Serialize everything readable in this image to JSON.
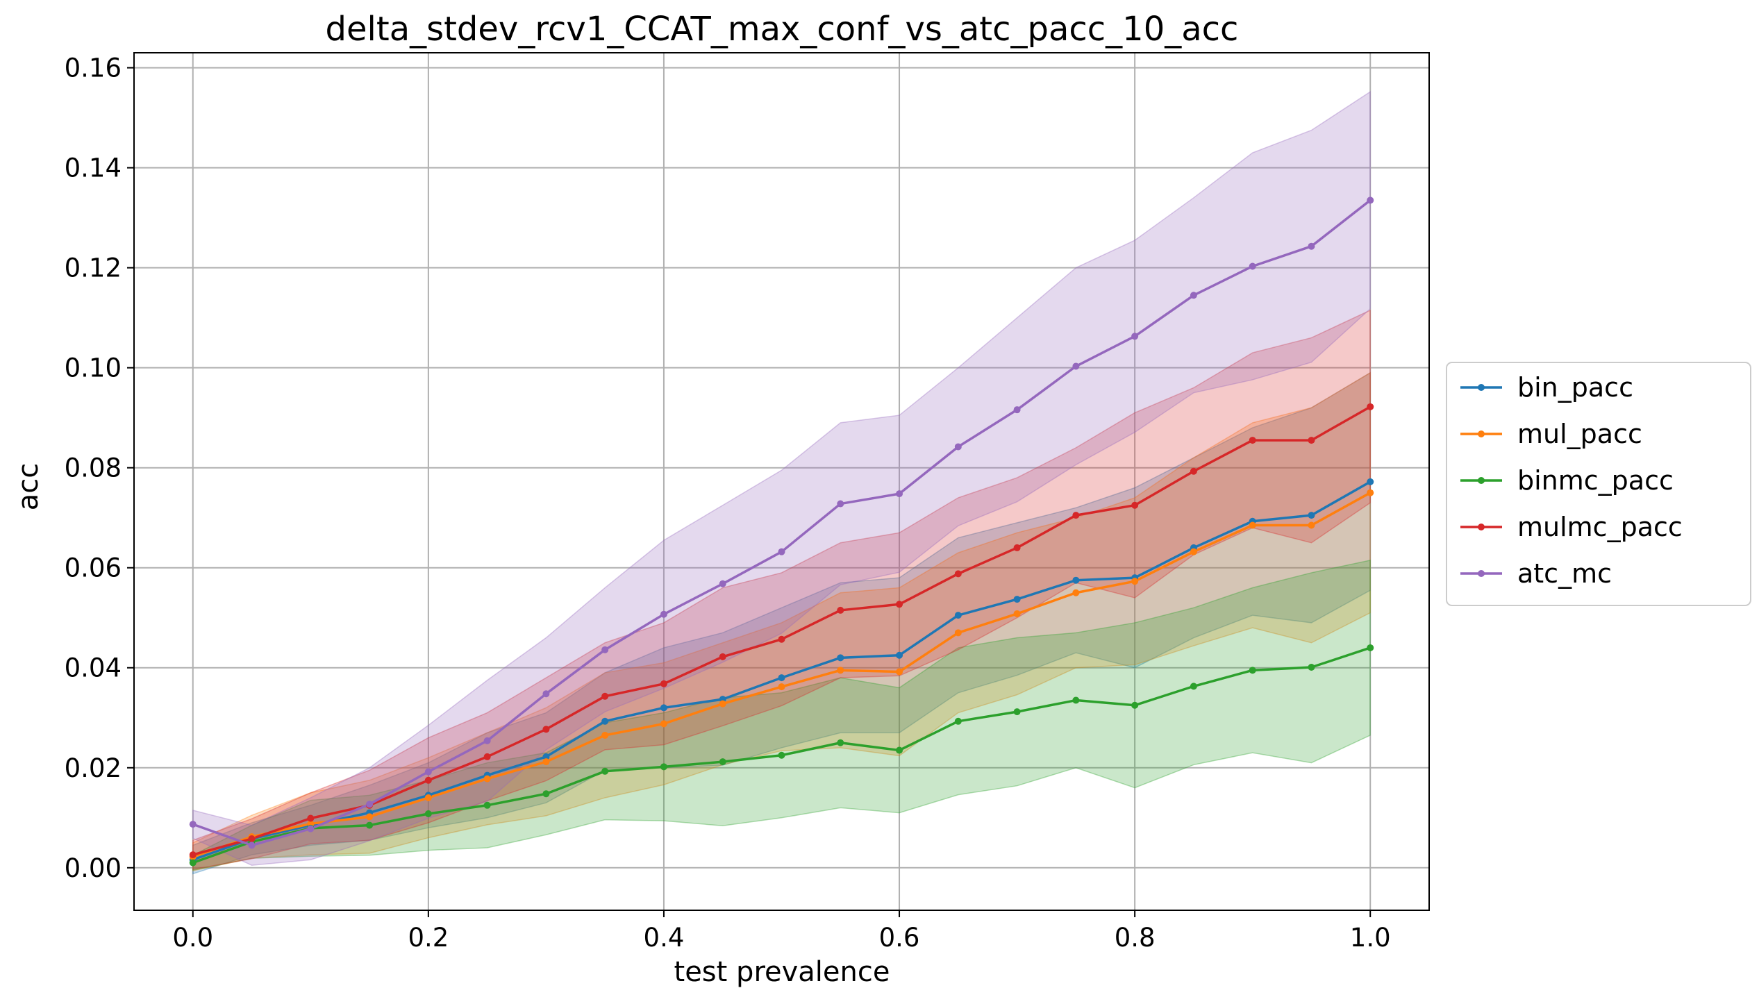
{
  "chart_data": {
    "type": "line",
    "title": "delta_stdev_rcv1_CCAT_max_conf_vs_atc_pacc_10_acc",
    "xlabel": "test prevalence",
    "ylabel": "acc",
    "xlim": [
      -0.05,
      1.05
    ],
    "ylim": [
      -0.0085,
      0.163
    ],
    "xticks": [
      0.0,
      0.2,
      0.4,
      0.6,
      0.8,
      1.0
    ],
    "xtick_labels": [
      "0.0",
      "0.2",
      "0.4",
      "0.6",
      "0.8",
      "1.0"
    ],
    "yticks": [
      0.0,
      0.02,
      0.04,
      0.06,
      0.08,
      0.1,
      0.12,
      0.14,
      0.16
    ],
    "ytick_labels": [
      "0.00",
      "0.02",
      "0.04",
      "0.06",
      "0.08",
      "0.10",
      "0.12",
      "0.14",
      "0.16"
    ],
    "grid": true,
    "legend_position": "outside-right",
    "x": [
      0.0,
      0.05,
      0.1,
      0.15,
      0.2,
      0.25,
      0.3,
      0.35,
      0.4,
      0.45,
      0.5,
      0.55,
      0.6,
      0.65,
      0.7,
      0.75,
      0.8,
      0.85,
      0.9,
      0.95,
      1.0
    ],
    "series": [
      {
        "name": "bin_pacc",
        "color": "#1f77b4",
        "values": [
          0.0016,
          0.0058,
          0.0085,
          0.011,
          0.0145,
          0.0185,
          0.0222,
          0.0293,
          0.032,
          0.0337,
          0.038,
          0.042,
          0.0425,
          0.0505,
          0.0537,
          0.0575,
          0.058,
          0.064,
          0.0693,
          0.0705,
          0.0772
        ],
        "upper": [
          0.0045,
          0.009,
          0.0125,
          0.0165,
          0.021,
          0.027,
          0.031,
          0.039,
          0.044,
          0.047,
          0.052,
          0.057,
          0.058,
          0.066,
          0.069,
          0.072,
          0.076,
          0.082,
          0.088,
          0.092,
          0.099
        ],
        "lower": [
          -0.0012,
          0.0026,
          0.0045,
          0.0055,
          0.008,
          0.01,
          0.013,
          0.0195,
          0.02,
          0.0205,
          0.024,
          0.027,
          0.027,
          0.035,
          0.0385,
          0.043,
          0.04,
          0.046,
          0.0505,
          0.049,
          0.0555
        ]
      },
      {
        "name": "mul_pacc",
        "color": "#ff7f0e",
        "values": [
          0.0022,
          0.0062,
          0.0088,
          0.0102,
          0.014,
          0.0178,
          0.0212,
          0.0265,
          0.0288,
          0.0328,
          0.0362,
          0.0395,
          0.0392,
          0.047,
          0.0508,
          0.055,
          0.0573,
          0.0632,
          0.0685,
          0.0685,
          0.075
        ],
        "upper": [
          0.005,
          0.0105,
          0.015,
          0.0175,
          0.022,
          0.027,
          0.032,
          0.039,
          0.041,
          0.045,
          0.049,
          0.055,
          0.056,
          0.063,
          0.067,
          0.07,
          0.074,
          0.082,
          0.089,
          0.092,
          0.099
        ],
        "lower": [
          -0.0006,
          0.0019,
          0.0026,
          0.0029,
          0.006,
          0.0086,
          0.0104,
          0.014,
          0.0166,
          0.0206,
          0.0234,
          0.024,
          0.0224,
          0.031,
          0.0346,
          0.04,
          0.0406,
          0.0444,
          0.048,
          0.045,
          0.051
        ]
      },
      {
        "name": "binmc_pacc",
        "color": "#2ca02c",
        "values": [
          0.001,
          0.0052,
          0.0079,
          0.0085,
          0.0108,
          0.0125,
          0.0148,
          0.0193,
          0.0202,
          0.0212,
          0.0225,
          0.025,
          0.0235,
          0.0293,
          0.0312,
          0.0335,
          0.0325,
          0.0363,
          0.0395,
          0.0401,
          0.044
        ],
        "upper": [
          0.0025,
          0.0085,
          0.0135,
          0.0145,
          0.0175,
          0.021,
          0.023,
          0.029,
          0.031,
          0.034,
          0.035,
          0.038,
          0.036,
          0.044,
          0.046,
          0.047,
          0.049,
          0.052,
          0.056,
          0.059,
          0.0615
        ],
        "lower": [
          -0.0005,
          0.0019,
          0.0023,
          0.0025,
          0.0035,
          0.004,
          0.0066,
          0.0096,
          0.0094,
          0.0084,
          0.01,
          0.012,
          0.011,
          0.0146,
          0.0164,
          0.02,
          0.016,
          0.0206,
          0.023,
          0.021,
          0.0265
        ]
      },
      {
        "name": "mulmc_pacc",
        "color": "#d62728",
        "values": [
          0.0026,
          0.0058,
          0.0099,
          0.0125,
          0.0175,
          0.0222,
          0.0277,
          0.0343,
          0.0368,
          0.0422,
          0.0457,
          0.0515,
          0.0527,
          0.0588,
          0.064,
          0.0705,
          0.0725,
          0.0793,
          0.0855,
          0.0855,
          0.0922
        ],
        "upper": [
          0.0055,
          0.0098,
          0.015,
          0.0195,
          0.026,
          0.031,
          0.038,
          0.045,
          0.049,
          0.056,
          0.059,
          0.065,
          0.067,
          0.074,
          0.078,
          0.084,
          0.091,
          0.096,
          0.103,
          0.106,
          0.1115
        ],
        "lower": [
          -0.0003,
          0.0018,
          0.0048,
          0.0055,
          0.009,
          0.0134,
          0.0174,
          0.0236,
          0.0246,
          0.0284,
          0.0324,
          0.038,
          0.0384,
          0.0436,
          0.05,
          0.057,
          0.054,
          0.0626,
          0.068,
          0.065,
          0.073
        ]
      },
      {
        "name": "atc_mc",
        "color": "#9467bd",
        "values": [
          0.0087,
          0.0045,
          0.0078,
          0.0127,
          0.0192,
          0.0254,
          0.0348,
          0.0436,
          0.0507,
          0.0568,
          0.0632,
          0.0728,
          0.0748,
          0.0842,
          0.0916,
          0.1003,
          0.1063,
          0.1145,
          0.1203,
          0.1243,
          0.1335
        ],
        "upper": [
          0.0115,
          0.0085,
          0.014,
          0.02,
          0.0285,
          0.0375,
          0.046,
          0.056,
          0.0655,
          0.0725,
          0.0795,
          0.089,
          0.0905,
          0.1,
          0.11,
          0.12,
          0.1255,
          0.134,
          0.143,
          0.1475,
          0.1552
        ]
      }
    ]
  }
}
